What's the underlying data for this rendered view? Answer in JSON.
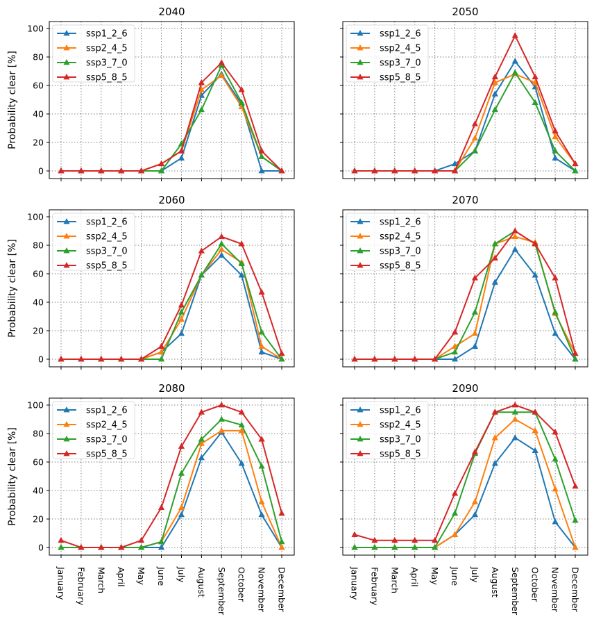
{
  "figure": {
    "ylabel": "Probability clear [%]",
    "months": [
      "January",
      "February",
      "March",
      "April",
      "May",
      "June",
      "July",
      "August",
      "September",
      "October",
      "November",
      "December"
    ],
    "yticks": [
      "0",
      "20",
      "40",
      "60",
      "80",
      "100"
    ],
    "ylim": [
      -5,
      105
    ]
  },
  "colors": {
    "ssp1_2_6": "#1f77b4",
    "ssp2_4_5": "#ff7f0e",
    "ssp3_7_0": "#2ca02c",
    "ssp5_8_5": "#d62728"
  },
  "chart_data": [
    {
      "type": "line",
      "title": "2040",
      "series": [
        {
          "name": "ssp1_2_6",
          "values": [
            0,
            0,
            0,
            0,
            0,
            0,
            9,
            53,
            68,
            47,
            0,
            0
          ]
        },
        {
          "name": "ssp2_4_5",
          "values": [
            0,
            0,
            0,
            0,
            0,
            5,
            14,
            57,
            67,
            45,
            10,
            0
          ]
        },
        {
          "name": "ssp3_7_0",
          "values": [
            0,
            0,
            0,
            0,
            0,
            0,
            19,
            43,
            74,
            48,
            10,
            0
          ]
        },
        {
          "name": "ssp5_8_5",
          "values": [
            0,
            0,
            0,
            0,
            0,
            5,
            14,
            62,
            76,
            57,
            14,
            0
          ]
        }
      ]
    },
    {
      "type": "line",
      "title": "2050",
      "series": [
        {
          "name": "ssp1_2_6",
          "values": [
            0,
            0,
            0,
            0,
            0,
            5,
            14,
            54,
            77,
            59,
            9,
            0
          ]
        },
        {
          "name": "ssp2_4_5",
          "values": [
            0,
            0,
            0,
            0,
            0,
            0,
            23,
            62,
            68,
            62,
            24,
            5
          ]
        },
        {
          "name": "ssp3_7_0",
          "values": [
            0,
            0,
            0,
            0,
            0,
            0,
            14,
            43,
            69,
            48,
            14,
            0
          ]
        },
        {
          "name": "ssp5_8_5",
          "values": [
            0,
            0,
            0,
            0,
            0,
            0,
            33,
            66,
            95,
            66,
            28,
            5
          ]
        }
      ]
    },
    {
      "type": "line",
      "title": "2060",
      "series": [
        {
          "name": "ssp1_2_6",
          "values": [
            0,
            0,
            0,
            0,
            0,
            5,
            18,
            59,
            73,
            59,
            5,
            0
          ]
        },
        {
          "name": "ssp2_4_5",
          "values": [
            0,
            0,
            0,
            0,
            0,
            5,
            28,
            59,
            77,
            68,
            9,
            0
          ]
        },
        {
          "name": "ssp3_7_0",
          "values": [
            0,
            0,
            0,
            0,
            0,
            0,
            33,
            59,
            81,
            67,
            19,
            0
          ]
        },
        {
          "name": "ssp5_8_5",
          "values": [
            0,
            0,
            0,
            0,
            0,
            9,
            38,
            76,
            86,
            81,
            47,
            4
          ]
        }
      ]
    },
    {
      "type": "line",
      "title": "2070",
      "series": [
        {
          "name": "ssp1_2_6",
          "values": [
            0,
            0,
            0,
            0,
            0,
            0,
            9,
            54,
            77,
            59,
            18,
            0
          ]
        },
        {
          "name": "ssp2_4_5",
          "values": [
            0,
            0,
            0,
            0,
            0,
            9,
            18,
            81,
            86,
            82,
            32,
            4
          ]
        },
        {
          "name": "ssp3_7_0",
          "values": [
            0,
            0,
            0,
            0,
            0,
            5,
            33,
            81,
            90,
            81,
            33,
            0
          ]
        },
        {
          "name": "ssp5_8_5",
          "values": [
            0,
            0,
            0,
            0,
            0,
            19,
            57,
            71,
            90,
            81,
            57,
            4
          ]
        }
      ]
    },
    {
      "type": "line",
      "title": "2080",
      "series": [
        {
          "name": "ssp1_2_6",
          "values": [
            0,
            0,
            0,
            0,
            0,
            0,
            23,
            63,
            81,
            59,
            23,
            0
          ]
        },
        {
          "name": "ssp2_4_5",
          "values": [
            0,
            0,
            0,
            0,
            0,
            4,
            28,
            73,
            82,
            82,
            32,
            0
          ]
        },
        {
          "name": "ssp3_7_0",
          "values": [
            0,
            0,
            0,
            0,
            0,
            4,
            52,
            76,
            90,
            86,
            57,
            4
          ]
        },
        {
          "name": "ssp5_8_5",
          "values": [
            5,
            0,
            0,
            0,
            5,
            28,
            71,
            95,
            100,
            95,
            76,
            24
          ]
        }
      ]
    },
    {
      "type": "line",
      "title": "2090",
      "series": [
        {
          "name": "ssp1_2_6",
          "values": [
            0,
            0,
            0,
            0,
            0,
            9,
            23,
            59,
            77,
            68,
            18,
            0
          ]
        },
        {
          "name": "ssp2_4_5",
          "values": [
            0,
            0,
            0,
            0,
            0,
            9,
            32,
            77,
            90,
            82,
            41,
            0
          ]
        },
        {
          "name": "ssp3_7_0",
          "values": [
            0,
            0,
            0,
            0,
            0,
            24,
            66,
            95,
            95,
            95,
            62,
            19
          ]
        },
        {
          "name": "ssp5_8_5",
          "values": [
            9,
            5,
            5,
            5,
            5,
            38,
            67,
            95,
            100,
            95,
            81,
            43
          ]
        }
      ]
    }
  ]
}
